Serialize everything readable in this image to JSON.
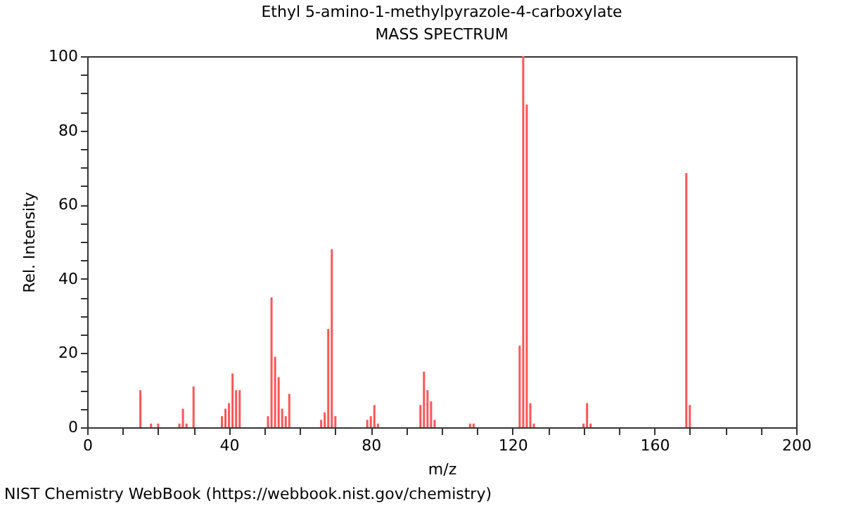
{
  "chart_data": {
    "type": "bar",
    "title": "Ethyl 5-amino-1-methylpyrazole-4-carboxylate",
    "subtitle": "MASS SPECTRUM",
    "xlabel": "m/z",
    "ylabel": "Rel. Intensity",
    "annotations": [
      "NIST Chemistry WebBook (https://webbook.nist.gov/chemistry)"
    ],
    "x": [
      15,
      18,
      20,
      26,
      27,
      28,
      30,
      38,
      39,
      40,
      41,
      42,
      43,
      51,
      52,
      53,
      54,
      55,
      56,
      57,
      66,
      67,
      68,
      69,
      70,
      79,
      80,
      81,
      82,
      94,
      95,
      96,
      97,
      98,
      108,
      109,
      122,
      123,
      124,
      125,
      126,
      140,
      141,
      142,
      169,
      170
    ],
    "values": [
      10,
      1,
      1,
      1,
      5,
      1,
      11,
      3,
      5,
      6.5,
      14.5,
      10,
      10,
      3,
      35,
      19,
      13.5,
      5,
      3,
      9,
      2,
      4,
      26.5,
      48,
      3,
      2,
      3,
      6,
      1,
      6,
      15,
      10,
      7,
      2,
      1,
      1,
      22,
      100,
      87,
      6.5,
      1,
      1,
      6.5,
      1,
      68.5,
      6
    ],
    "color": "#ff5555",
    "xlim": [
      0,
      200
    ],
    "xticks": [
      0,
      {
        "value": 10,
        "label": null
      },
      {
        "value": 20,
        "label": null
      },
      {
        "value": 30,
        "label": null
      },
      40,
      {
        "value": 50,
        "label": null
      },
      {
        "value": 60,
        "label": null
      },
      {
        "value": 70,
        "label": null
      },
      80,
      {
        "value": 90,
        "label": null
      },
      {
        "value": 100,
        "label": null
      },
      {
        "value": 110,
        "label": null
      },
      120,
      {
        "value": 130,
        "label": null
      },
      {
        "value": 140,
        "label": null
      },
      {
        "value": 150,
        "label": null
      },
      160,
      {
        "value": 170,
        "label": null
      },
      {
        "value": 180,
        "label": null
      },
      {
        "value": 190,
        "label": null
      },
      200
    ],
    "ylim": [
      0,
      100
    ],
    "yticks": [
      0,
      {
        "value": 5,
        "label": null
      },
      {
        "value": 10,
        "label": null
      },
      {
        "value": 15,
        "label": null
      },
      20,
      {
        "value": 25,
        "label": null
      },
      {
        "value": 30,
        "label": null
      },
      {
        "value": 35,
        "label": null
      },
      40,
      {
        "value": 45,
        "label": null
      },
      {
        "value": 50,
        "label": null
      },
      {
        "value": 55,
        "label": null
      },
      60,
      {
        "value": 65,
        "label": null
      },
      {
        "value": 70,
        "label": null
      },
      {
        "value": 75,
        "label": null
      },
      80,
      {
        "value": 85,
        "label": null
      },
      {
        "value": 90,
        "label": null
      },
      {
        "value": 95,
        "label": null
      },
      100
    ],
    "grid": false
  }
}
